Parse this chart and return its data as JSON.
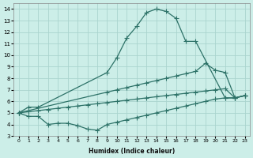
{
  "xlabel": "Humidex (Indice chaleur)",
  "bg_color": "#cceee8",
  "grid_color": "#aad4ce",
  "line_color": "#2d7268",
  "xlim": [
    -0.5,
    23.5
  ],
  "ylim": [
    3,
    14.5
  ],
  "yticks": [
    3,
    4,
    5,
    6,
    7,
    8,
    9,
    10,
    11,
    12,
    13,
    14
  ],
  "xticks": [
    0,
    1,
    2,
    3,
    4,
    5,
    6,
    7,
    8,
    9,
    10,
    11,
    12,
    13,
    14,
    15,
    16,
    17,
    18,
    19,
    20,
    21,
    22,
    23
  ],
  "line1_x": [
    0,
    1,
    2,
    9,
    10,
    11,
    12,
    13,
    14,
    15,
    16,
    17,
    18,
    21,
    22,
    23
  ],
  "line1_y": [
    5.0,
    5.5,
    5.5,
    8.5,
    9.8,
    11.5,
    12.5,
    13.7,
    14.0,
    13.8,
    13.2,
    11.2,
    11.2,
    6.3,
    6.3,
    6.5
  ],
  "line2_x": [
    0,
    9,
    10,
    11,
    12,
    13,
    14,
    15,
    16,
    17,
    18,
    19,
    20,
    21,
    22,
    23
  ],
  "line2_y": [
    5.0,
    6.8,
    7.0,
    7.2,
    7.4,
    7.6,
    7.8,
    8.0,
    8.2,
    8.4,
    8.6,
    9.3,
    8.7,
    8.5,
    6.3,
    6.5
  ],
  "line3_x": [
    0,
    1,
    2,
    3,
    4,
    5,
    6,
    7,
    8,
    9,
    10,
    11,
    12,
    13,
    14,
    15,
    16,
    17,
    18,
    19,
    20,
    21,
    22,
    23
  ],
  "line3_y": [
    5.0,
    5.1,
    5.2,
    5.3,
    5.4,
    5.5,
    5.6,
    5.7,
    5.8,
    5.9,
    6.0,
    6.1,
    6.2,
    6.3,
    6.4,
    6.5,
    6.6,
    6.7,
    6.8,
    6.9,
    7.0,
    7.1,
    6.3,
    6.5
  ],
  "line4_x": [
    0,
    1,
    2,
    3,
    4,
    5,
    6,
    7,
    8,
    9,
    10,
    11,
    12,
    13,
    14,
    15,
    16,
    17,
    18,
    19,
    20,
    21,
    22,
    23
  ],
  "line4_y": [
    5.0,
    4.7,
    4.7,
    4.0,
    4.1,
    4.1,
    3.9,
    3.6,
    3.5,
    4.0,
    4.2,
    4.4,
    4.6,
    4.8,
    5.0,
    5.2,
    5.4,
    5.6,
    5.8,
    6.0,
    6.2,
    6.3,
    6.3,
    6.5
  ]
}
